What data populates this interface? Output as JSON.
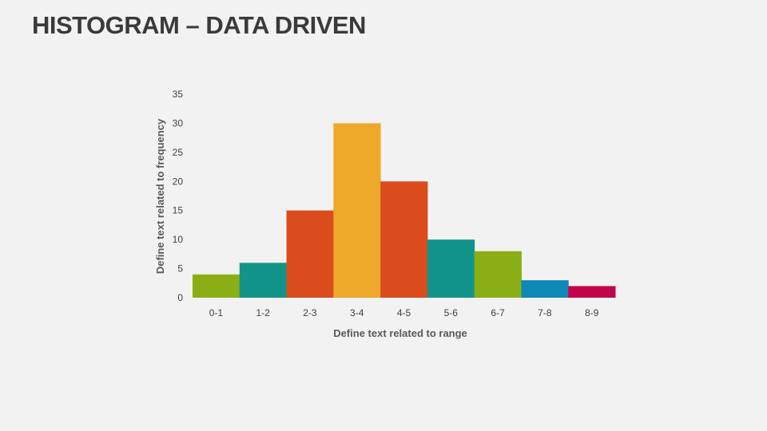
{
  "title": "HISTOGRAM – DATA DRIVEN",
  "chart_data": {
    "type": "bar",
    "categories": [
      "0-1",
      "1-2",
      "2-3",
      "3-4",
      "4-5",
      "5-6",
      "6-7",
      "7-8",
      "8-9"
    ],
    "values": [
      4,
      6,
      15,
      30,
      20,
      10,
      8,
      3,
      2
    ],
    "colors": [
      "#8aae14",
      "#12948a",
      "#da4c1c",
      "#eea92a",
      "#da4c1c",
      "#12948a",
      "#8aae14",
      "#0e89b6",
      "#c2044c"
    ],
    "xlabel": "Define text related to range",
    "ylabel": "Define text related to frequency",
    "ylim": [
      0,
      35
    ],
    "yticks": [
      0,
      5,
      10,
      15,
      20,
      25,
      30,
      35
    ],
    "grid": false
  }
}
